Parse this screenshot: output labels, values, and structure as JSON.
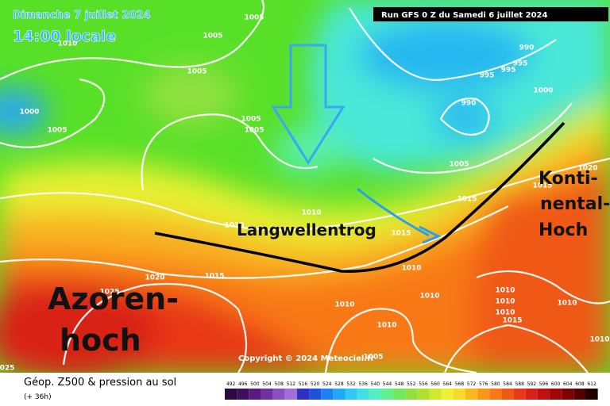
{
  "header": {
    "date": "Dimanche 7 juillet 2024",
    "time": "14:00 locale",
    "run": "Run GFS 0 Z du Samedi 6 juillet 2024"
  },
  "annotations": {
    "trough": "Langwellentrog",
    "azores": [
      "Azoren-",
      "hoch"
    ],
    "continental": [
      "Konti-",
      "nental-",
      "Hoch"
    ]
  },
  "isobar_labels": [
    "1005",
    "1005",
    "1010",
    "1005",
    "1000",
    "1005",
    "1005",
    "1005",
    "990",
    "995",
    "995",
    "995",
    "990",
    "1000",
    "1005",
    "1020",
    "1015",
    "1015",
    "1010",
    "1010",
    "1015",
    "1020",
    "1015",
    "1010",
    "1025",
    "1010",
    "1010",
    "1010",
    "1010",
    "1010",
    "1010",
    "1010",
    "1015",
    "1010",
    "1005",
    "025"
  ],
  "copyright": "Copyright © 2024 Meteociel.fr",
  "footer": {
    "title": "Géop. Z500 & pression au sol",
    "lead": "(+ 36h)"
  },
  "legend": {
    "ticks": [
      492,
      496,
      500,
      504,
      508,
      512,
      516,
      520,
      524,
      528,
      532,
      536,
      540,
      544,
      548,
      552,
      556,
      560,
      564,
      568,
      572,
      576,
      580,
      584,
      588,
      592,
      596,
      600,
      604,
      608,
      612
    ],
    "colors": [
      "#2b0b3f",
      "#400f5c",
      "#5b1a7e",
      "#7030a0",
      "#8a4fc0",
      "#a070d8",
      "#3030c0",
      "#2050e0",
      "#2080f0",
      "#20a8f8",
      "#30c8f0",
      "#40e0e0",
      "#50f0c0",
      "#60f090",
      "#70e860",
      "#90e040",
      "#b0e030",
      "#d0e830",
      "#f0f030",
      "#f8d828",
      "#f8b820",
      "#f89818",
      "#f87818",
      "#f05818",
      "#e83818",
      "#d82018",
      "#c01010",
      "#a00808",
      "#800000",
      "#500000",
      "#200000"
    ]
  }
}
